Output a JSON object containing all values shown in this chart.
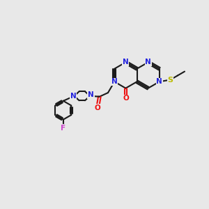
{
  "bg_color": "#e8e8e8",
  "bond_color": "#1a1a1a",
  "N_color": "#2222dd",
  "O_color": "#ee1111",
  "S_color": "#bbbb00",
  "F_color": "#cc44cc",
  "line_width": 1.5,
  "font_size": 7.5,
  "figsize": [
    3.0,
    3.0
  ],
  "dpi": 100,
  "xlim": [
    0,
    10
  ],
  "ylim": [
    0,
    10
  ]
}
